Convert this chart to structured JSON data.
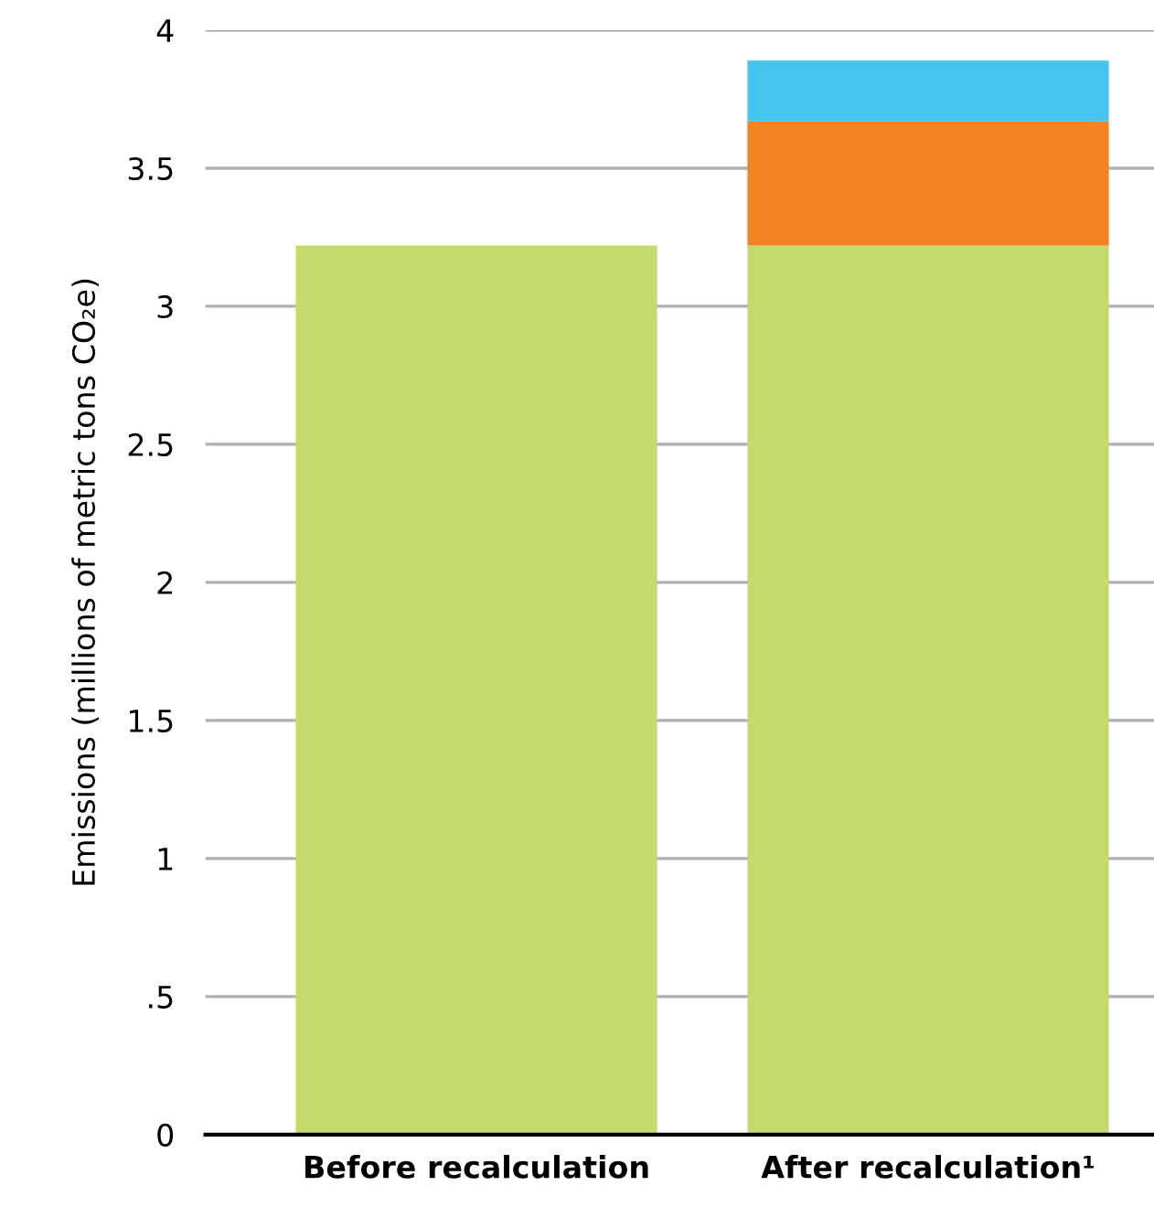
{
  "chart_data": {
    "type": "bar",
    "stacked": true,
    "ylabel": "Emissions (millions of metric tons CO₂e)",
    "categories": [
      "Before recalculation",
      "After recalculation¹"
    ],
    "series": [
      {
        "color": "#c3da6c",
        "values": [
          3.22,
          3.22
        ]
      },
      {
        "color": "#f38221",
        "values": [
          null,
          0.45
        ]
      },
      {
        "color": "#45c5ed",
        "values": [
          null,
          0.22
        ]
      }
    ],
    "ylim": [
      0,
      4
    ],
    "yticks": [
      0,
      {
        "value": 0.5,
        "label": ".5"
      },
      1,
      1.5,
      2,
      2.5,
      3,
      3.5,
      4
    ],
    "grid": "y"
  }
}
